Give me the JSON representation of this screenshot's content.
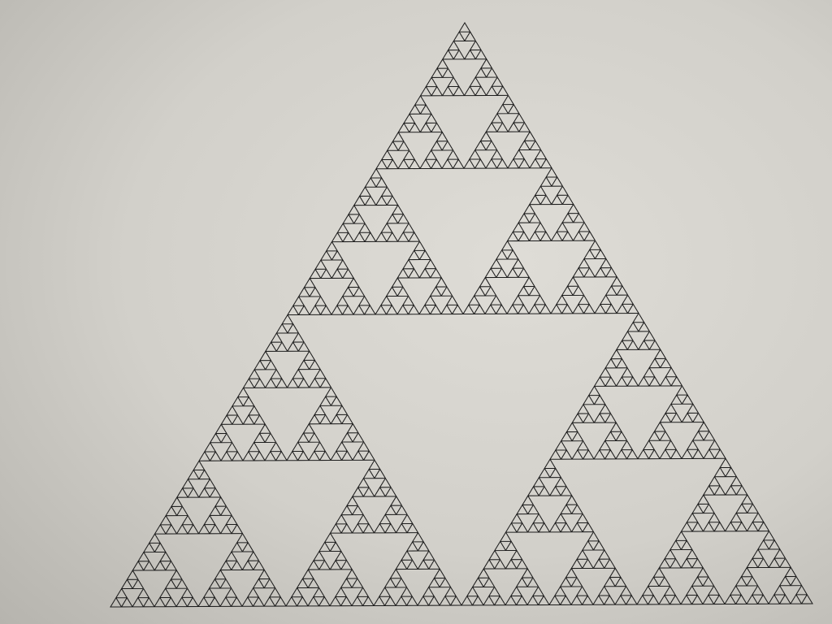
{
  "photo": {
    "subject": "sierpinski-triangle",
    "recursion_depth": 6,
    "colors": {
      "paper_light": "#dedcd6",
      "paper_mid": "#d2d0ca",
      "paper_dark": "#b6b4ae",
      "ink": "#1c1c1c"
    }
  }
}
